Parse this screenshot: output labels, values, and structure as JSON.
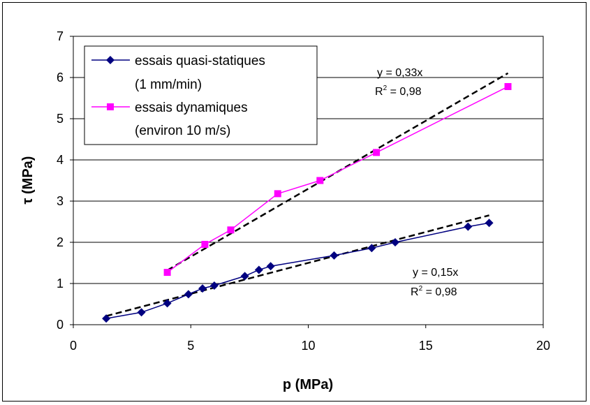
{
  "chart_data": {
    "type": "line",
    "xlabel": "p (MPa)",
    "ylabel": "τ (MPa)",
    "xlim": [
      0,
      20
    ],
    "ylim": [
      0,
      7
    ],
    "xticks": [
      "0",
      "5",
      "10",
      "15",
      "20"
    ],
    "yticks": [
      "0",
      "1",
      "2",
      "3",
      "4",
      "5",
      "6",
      "7"
    ],
    "grid": "horizontal",
    "legend_position": "top-left",
    "series": [
      {
        "name": "essais quasi-statiques",
        "name_line2": "(1 mm/min)",
        "color": "#000080",
        "marker": "diamond",
        "points": [
          [
            1.4,
            0.15
          ],
          [
            2.9,
            0.3
          ],
          [
            4.0,
            0.52
          ],
          [
            4.9,
            0.74
          ],
          [
            5.5,
            0.88
          ],
          [
            6.0,
            0.95
          ],
          [
            7.3,
            1.18
          ],
          [
            7.9,
            1.33
          ],
          [
            8.4,
            1.42
          ],
          [
            11.1,
            1.68
          ],
          [
            12.7,
            1.86
          ],
          [
            13.7,
            2.0
          ],
          [
            16.8,
            2.38
          ],
          [
            17.7,
            2.47
          ]
        ]
      },
      {
        "name": "essais dynamiques",
        "name_line2": "(environ 10 m/s)",
        "color": "#FF00FF",
        "marker": "square",
        "points": [
          [
            4.0,
            1.27
          ],
          [
            5.6,
            1.95
          ],
          [
            6.7,
            2.3
          ],
          [
            8.7,
            3.18
          ],
          [
            10.5,
            3.5
          ],
          [
            12.9,
            4.18
          ],
          [
            18.5,
            5.78
          ]
        ]
      }
    ],
    "trendlines": [
      {
        "equation": "y = 0,33x",
        "r2_label": "R",
        "r2_sup": "2",
        "r2_value": " = 0,98",
        "slope": 0.33,
        "x_range": [
          4.0,
          18.5
        ]
      },
      {
        "equation": "y = 0,15x",
        "r2_label": "R",
        "r2_sup": "2",
        "r2_value": " = 0,98",
        "slope": 0.15,
        "x_range": [
          1.4,
          17.7
        ]
      }
    ]
  }
}
